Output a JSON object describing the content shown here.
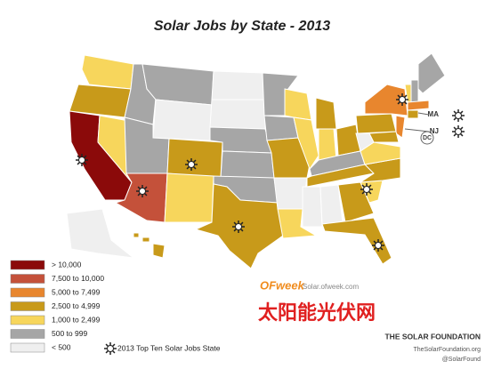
{
  "title": "Solar Jobs by State - 2013",
  "legend": [
    {
      "label": "> 10,000",
      "color": "#8b0a0a"
    },
    {
      "label": "7,500 to 10,000",
      "color": "#c4513a"
    },
    {
      "label": "5,000 to 7,499",
      "color": "#e8862e"
    },
    {
      "label": "2,500 to 4,999",
      "color": "#c89a1a"
    },
    {
      "label": "1,000 to 2,499",
      "color": "#f7d65c"
    },
    {
      "label": "500 to 999",
      "color": "#a6a6a6"
    },
    {
      "label": "< 500",
      "color": "#efefef"
    }
  ],
  "top_ten_label": "2013 Top Ten Solar Jobs State",
  "state_labels": [
    "MA",
    "NJ",
    "DC"
  ],
  "watermark": {
    "brand": "OFweek",
    "url": "Solar.ofweek.com",
    "name": "太阳能光伏网"
  },
  "footer": {
    "org": "THE SOLAR FOUNDATION",
    "site": "TheSolarFoundation.org",
    "handle": "@SolarFound"
  }
}
